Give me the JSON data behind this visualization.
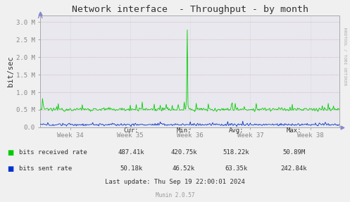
{
  "title": "Network interface  - Throughput - by month",
  "ylabel": "bit/sec",
  "fig_bg_color": "#f0f0f0",
  "plot_bg_color": "#e8e8ee",
  "grid_color_h": "#cc9999",
  "grid_color_v": "#cccccc",
  "ytick_vals": [
    0,
    500000,
    1000000,
    1500000,
    2000000,
    2500000,
    3000000
  ],
  "ytick_labels": [
    "0.0",
    "0.5 M",
    "1.0 M",
    "1.5 M",
    "2.0 M",
    "2.5 M",
    "3.0 M"
  ],
  "ylim": [
    0,
    3200000
  ],
  "xtick_labels": [
    "Week 34",
    "Week 35",
    "Week 36",
    "Week 37",
    "Week 38"
  ],
  "green_color": "#00cc00",
  "blue_color": "#0033cc",
  "legend_items": [
    "bits received rate",
    "bits sent rate"
  ],
  "stats_headers": [
    "Cur:",
    "Min:",
    "Avg:",
    "Max:"
  ],
  "stats_green": [
    "487.41k",
    "420.75k",
    "518.22k",
    "50.89M"
  ],
  "stats_blue": [
    "50.18k",
    "46.52k",
    "63.35k",
    "242.84k"
  ],
  "last_update": "Last update: Thu Sep 19 22:00:01 2024",
  "munin_version": "Munin 2.0.57",
  "rrdtool_label": "RRDTOOL / TOBI OETIKER",
  "arrow_color": "#8888cc"
}
